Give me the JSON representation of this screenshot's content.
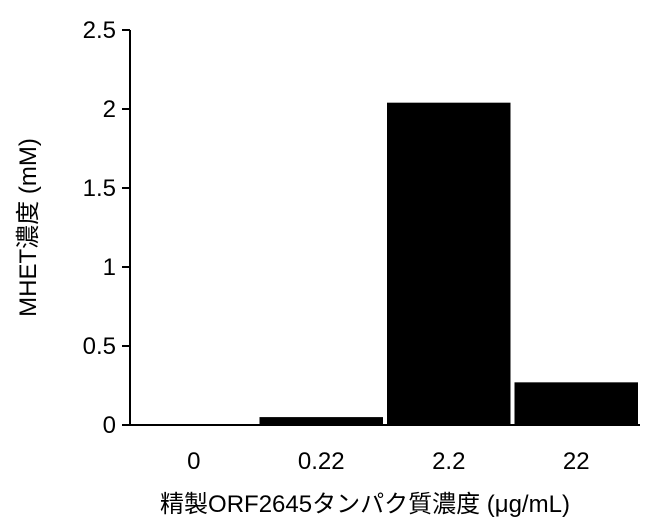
{
  "chart_data": {
    "type": "bar",
    "categories": [
      "0",
      "0.22",
      "2.2",
      "22"
    ],
    "values": [
      0.0,
      0.05,
      2.04,
      0.27
    ],
    "title": "",
    "xlabel": "精製ORF2645タンパク質濃度 (μg/mL)",
    "ylabel": "MHET濃度 (mM)",
    "ylim": [
      0,
      2.5
    ],
    "yticks": [
      "0",
      "0.5",
      "1",
      "1.5",
      "2",
      "2.5"
    ],
    "grid": false,
    "legend": "none",
    "bar_color": "#000000",
    "axis_color": "#000000"
  }
}
